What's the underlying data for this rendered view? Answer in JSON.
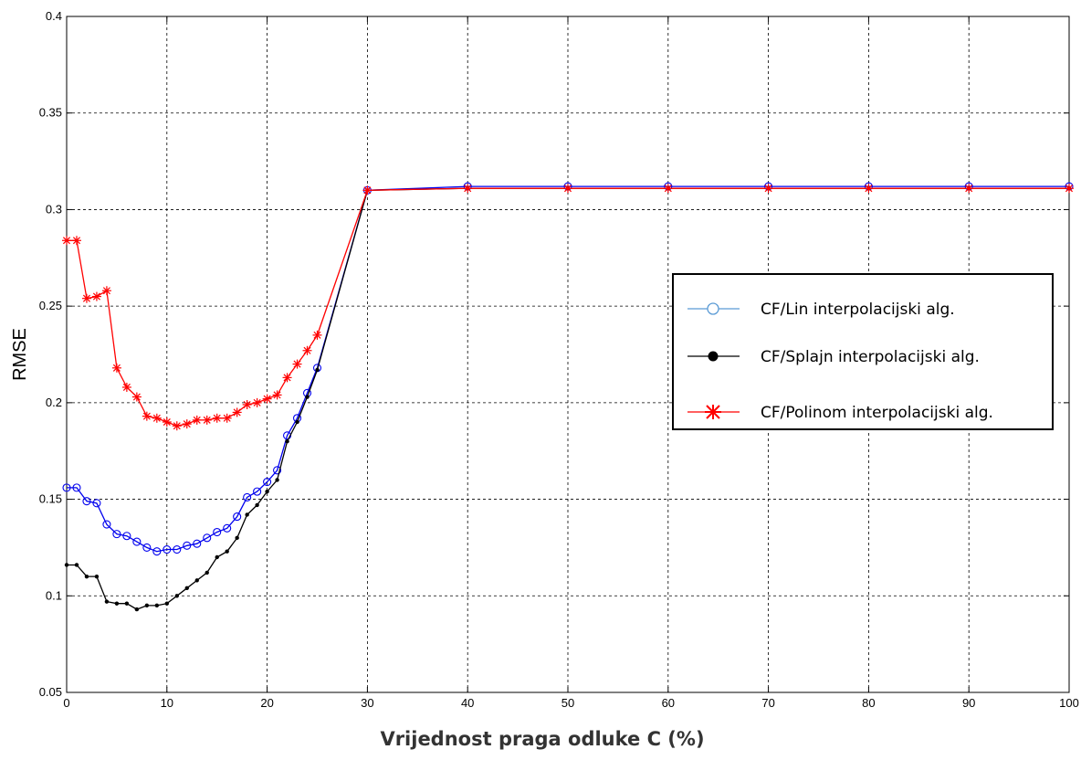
{
  "chart_data": {
    "type": "line",
    "xlabel": "Vrijednost praga odluke C (%)",
    "ylabel": "RMSE",
    "xlim": [
      0,
      100
    ],
    "ylim": [
      0.05,
      0.4
    ],
    "x_ticks": [
      "0",
      "10",
      "20",
      "30",
      "40",
      "50",
      "60",
      "70",
      "80",
      "90",
      "100"
    ],
    "y_ticks": [
      "0.05",
      "0.1",
      "0.15",
      "0.2",
      "0.25",
      "0.3",
      "0.35",
      "0.4"
    ],
    "grid": true,
    "legend_position": "right",
    "series": [
      {
        "name": "CF/Lin interpolacijski alg.",
        "color": "#0000ee",
        "legend_color": "#5b9bd5",
        "marker": "open-circle",
        "x": [
          0,
          1,
          2,
          3,
          4,
          5,
          6,
          7,
          8,
          9,
          10,
          11,
          12,
          13,
          14,
          15,
          16,
          17,
          18,
          19,
          20,
          21,
          22,
          23,
          24,
          25,
          30,
          40,
          50,
          60,
          70,
          80,
          90,
          100
        ],
        "y": [
          0.156,
          0.156,
          0.149,
          0.148,
          0.137,
          0.132,
          0.131,
          0.128,
          0.125,
          0.123,
          0.124,
          0.124,
          0.126,
          0.127,
          0.13,
          0.133,
          0.135,
          0.141,
          0.151,
          0.154,
          0.159,
          0.165,
          0.183,
          0.192,
          0.205,
          0.218,
          0.31,
          0.312,
          0.312,
          0.312,
          0.312,
          0.312,
          0.312,
          0.312
        ]
      },
      {
        "name": "CF/Splajn interpolacijski alg.",
        "color": "#000000",
        "legend_color": "#000000",
        "marker": "filled-dot",
        "x": [
          0,
          1,
          2,
          3,
          4,
          5,
          6,
          7,
          8,
          9,
          10,
          11,
          12,
          13,
          14,
          15,
          16,
          17,
          18,
          19,
          20,
          21,
          22,
          23,
          24,
          25,
          30,
          40,
          50,
          60,
          70,
          80,
          90,
          100
        ],
        "y": [
          0.116,
          0.116,
          0.11,
          0.11,
          0.097,
          0.096,
          0.096,
          0.093,
          0.095,
          0.095,
          0.096,
          0.1,
          0.104,
          0.108,
          0.112,
          0.12,
          0.123,
          0.13,
          0.142,
          0.147,
          0.154,
          0.16,
          0.18,
          0.19,
          0.203,
          0.217,
          0.31,
          0.311,
          0.311,
          0.311,
          0.311,
          0.311,
          0.311,
          0.311
        ]
      },
      {
        "name": "CF/Polinom interpolacijski alg.",
        "color": "#ff0000",
        "legend_color": "#ff0000",
        "marker": "asterisk",
        "x": [
          0,
          1,
          2,
          3,
          4,
          5,
          6,
          7,
          8,
          9,
          10,
          11,
          12,
          13,
          14,
          15,
          16,
          17,
          18,
          19,
          20,
          21,
          22,
          23,
          24,
          25,
          30,
          40,
          50,
          60,
          70,
          80,
          90,
          100
        ],
        "y": [
          0.284,
          0.284,
          0.254,
          0.255,
          0.258,
          0.218,
          0.208,
          0.203,
          0.193,
          0.192,
          0.19,
          0.188,
          0.189,
          0.191,
          0.191,
          0.192,
          0.192,
          0.195,
          0.199,
          0.2,
          0.202,
          0.204,
          0.213,
          0.22,
          0.227,
          0.235,
          0.31,
          0.311,
          0.311,
          0.311,
          0.311,
          0.311,
          0.311,
          0.311
        ]
      }
    ]
  }
}
